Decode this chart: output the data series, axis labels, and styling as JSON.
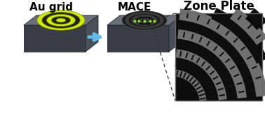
{
  "label_au": "Au grid",
  "label_mace": "MACE",
  "label_zone": "Zone Plate",
  "box_top_color": "#6a6f7a",
  "box_front_color": "#3a3d45",
  "box_right_color": "#4a4f58",
  "box_edge_color": "#22252a",
  "au_ring_yellow": "#ccee00",
  "au_ring_dark": "#222222",
  "au_ring_edge": "#888800",
  "mace_ring_dark": "#1a1a1a",
  "mace_ring_mid": "#3a3a3a",
  "mace_ring_edge": "#444444",
  "arrow_color": "#66bbee",
  "dash_color": "#333333",
  "zp_dark": "#0d0d0d",
  "zp_light": "#707070",
  "zp_mid": "#404040",
  "green_dot": "#88ee22",
  "font_size_label": 11,
  "font_size_title": 12,
  "figure_width": 3.78,
  "figure_height": 1.66,
  "dpi": 100
}
